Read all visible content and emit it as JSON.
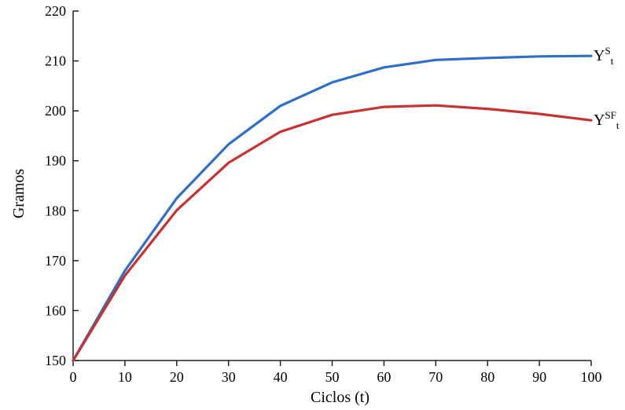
{
  "chart_data": {
    "type": "line",
    "xlabel": "Ciclos (t)",
    "ylabel": "Gramos",
    "xlim": [
      0,
      100
    ],
    "ylim": [
      150,
      220
    ],
    "xticks": [
      0,
      10,
      20,
      30,
      40,
      50,
      60,
      70,
      80,
      90,
      100
    ],
    "yticks": [
      150,
      160,
      170,
      180,
      190,
      200,
      210,
      220
    ],
    "grid": false,
    "legend": "inline-right",
    "series": [
      {
        "name": "YSt",
        "label_base": "Y",
        "label_sup": "S",
        "label_sub": "t",
        "color": "#2e6fc7",
        "x": [
          0,
          10,
          20,
          30,
          40,
          50,
          60,
          70,
          80,
          90,
          100
        ],
        "y": [
          150,
          168,
          182.5,
          193.3,
          201,
          205.7,
          208.7,
          210.2,
          210.6,
          210.9,
          211
        ]
      },
      {
        "name": "YSFt",
        "label_base": "Y",
        "label_sup": "SF",
        "label_sub": "t",
        "color": "#c83232",
        "x": [
          0,
          10,
          20,
          30,
          40,
          50,
          60,
          70,
          80,
          90,
          100
        ],
        "y": [
          150,
          167,
          180.1,
          189.6,
          195.8,
          199.2,
          200.8,
          201.1,
          200.4,
          199.4,
          198.1
        ]
      }
    ]
  }
}
